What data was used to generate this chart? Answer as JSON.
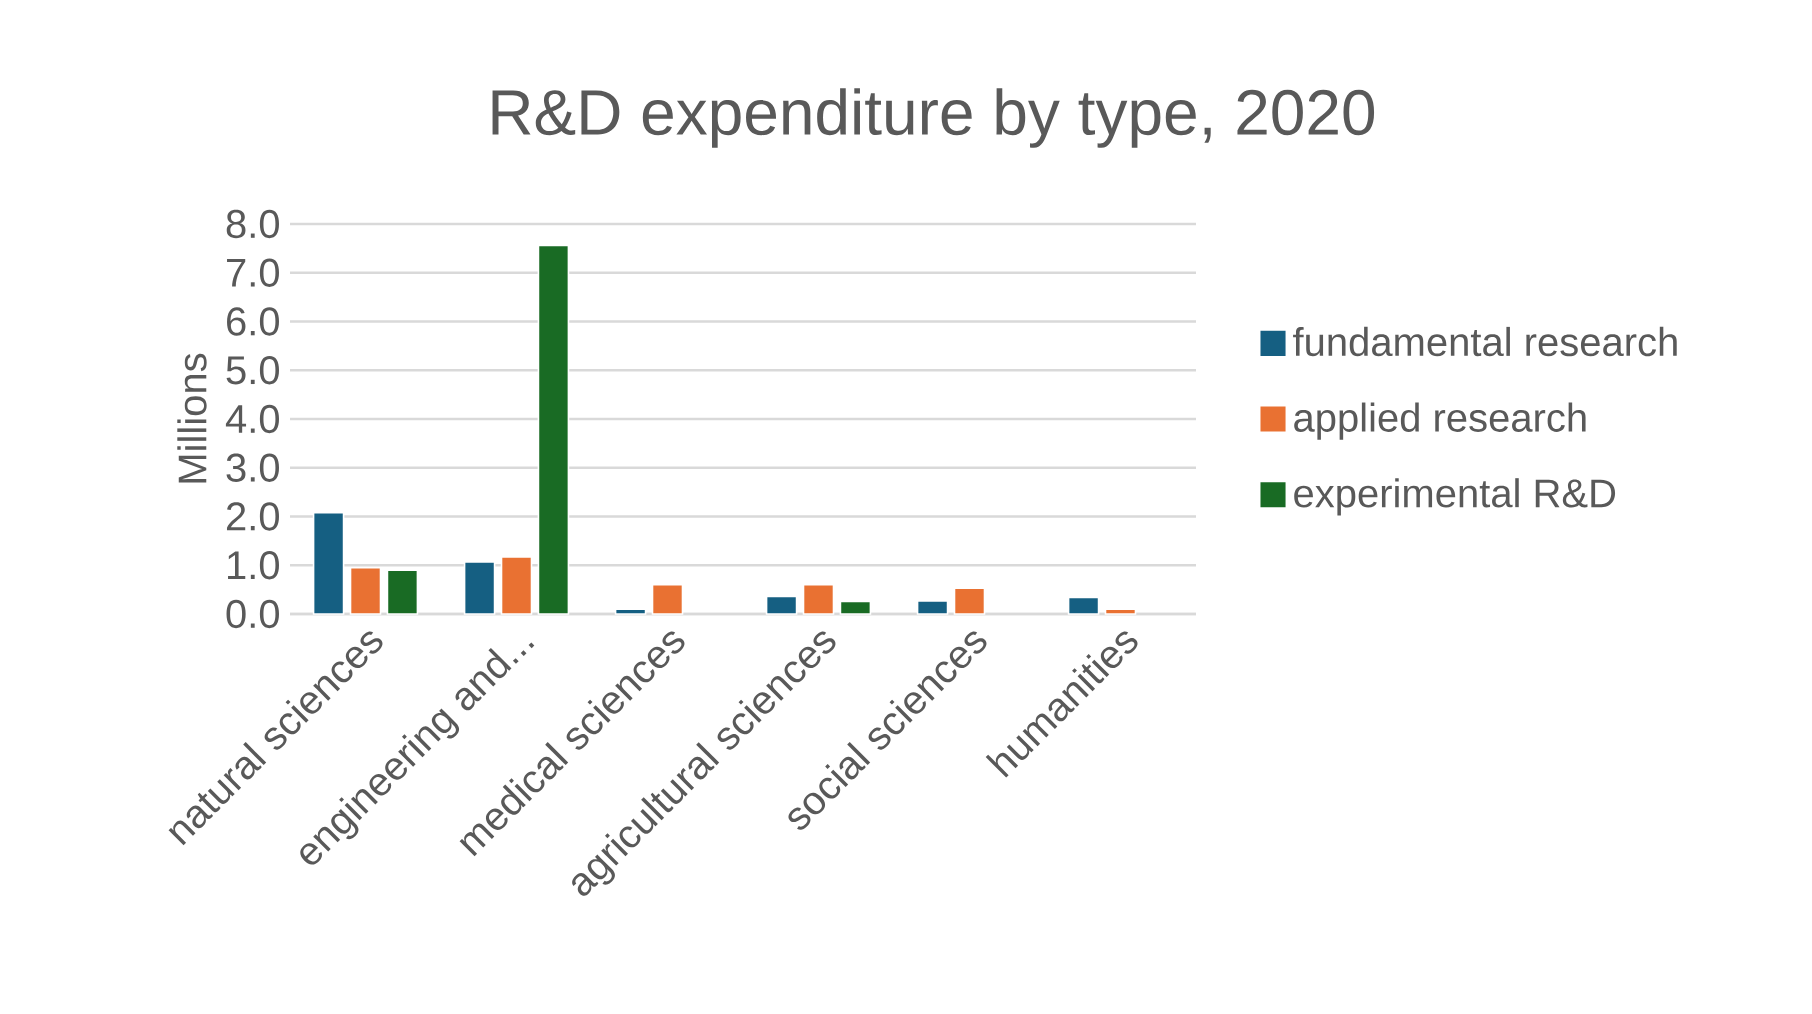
{
  "chart_data": {
    "type": "bar",
    "title": "R&D expenditure by type, 2020",
    "ylabel": "Millions",
    "categories": [
      "natural sciences",
      "engineering and...",
      "medical sciences",
      "agricultural sciences",
      "social sciences",
      "humanities"
    ],
    "series": [
      {
        "name": "fundamental research",
        "color": "#155f82",
        "values": [
          2.08,
          1.07,
          0.1,
          0.36,
          0.27,
          0.34
        ]
      },
      {
        "name": "applied research",
        "color": "#e97132",
        "values": [
          0.95,
          1.17,
          0.6,
          0.6,
          0.53,
          0.1
        ]
      },
      {
        "name": "experimental R&D",
        "color": "#196b24",
        "values": [
          0.9,
          7.56,
          null,
          0.26,
          null,
          null
        ]
      }
    ],
    "ylim": [
      0,
      8
    ],
    "yticks": [
      {
        "value": 0,
        "label": "0.0"
      },
      {
        "value": 1,
        "label": "1.0"
      },
      {
        "value": 2,
        "label": "2.0"
      },
      {
        "value": 3,
        "label": "3.0"
      },
      {
        "value": 4,
        "label": "4.0"
      },
      {
        "value": 5,
        "label": "5.0"
      },
      {
        "value": 6,
        "label": "6.0"
      },
      {
        "value": 7,
        "label": "7.0"
      },
      {
        "value": 8,
        "label": "8.0"
      }
    ],
    "grid": "y",
    "legend": "right"
  }
}
